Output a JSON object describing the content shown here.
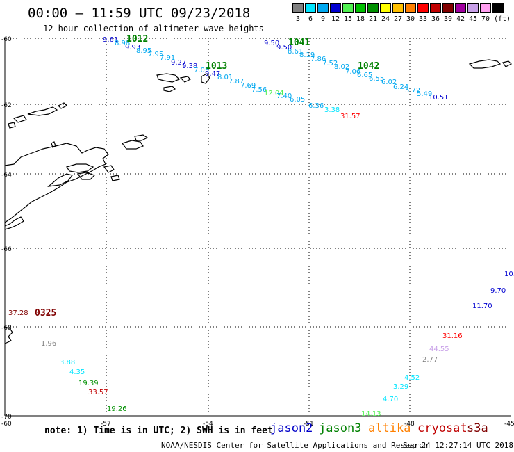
{
  "header": {
    "title": "00:00 – 11:59 UTC 09/23/2018",
    "subtitle": "12 hour collection of altimeter wave heights"
  },
  "legend": {
    "unit": "(ft)",
    "bins": [
      {
        "label": "3",
        "color": "#808080"
      },
      {
        "label": "6",
        "color": "#00e5ff"
      },
      {
        "label": "9",
        "color": "#00a8f0"
      },
      {
        "label": "12",
        "color": "#0000d0"
      },
      {
        "label": "15",
        "color": "#50f050"
      },
      {
        "label": "18",
        "color": "#00c000"
      },
      {
        "label": "21",
        "color": "#009000"
      },
      {
        "label": "24",
        "color": "#ffff00"
      },
      {
        "label": "27",
        "color": "#ffc000"
      },
      {
        "label": "30",
        "color": "#ff8000"
      },
      {
        "label": "33",
        "color": "#ff0000"
      },
      {
        "label": "36",
        "color": "#c00000"
      },
      {
        "label": "39",
        "color": "#800000"
      },
      {
        "label": "42",
        "color": "#a000a0"
      },
      {
        "label": "45",
        "color": "#c8a0e8"
      },
      {
        "label": "70",
        "color": "#ff9ff0"
      },
      {
        "label": "",
        "color": "#000000"
      }
    ]
  },
  "axes": {
    "lat_labels": [
      "-60",
      "-62",
      "-64",
      "-66",
      "-68",
      "-70"
    ],
    "lon_labels": [
      "-60",
      "-57",
      "-54",
      "-51",
      "-48",
      "-45"
    ]
  },
  "track_times": [
    {
      "text": "1012",
      "color": "#008000"
    },
    {
      "text": "1013",
      "color": "#008000"
    },
    {
      "text": "1041",
      "color": "#008000"
    },
    {
      "text": "1042",
      "color": "#008000"
    },
    {
      "text": "0325",
      "color": "#800000"
    }
  ],
  "observations": [
    {
      "text": "9.61",
      "color": "#0000d0"
    },
    {
      "text": "8.98",
      "color": "#00a8f0"
    },
    {
      "text": "9.93",
      "color": "#0000d0"
    },
    {
      "text": "8.95",
      "color": "#00a8f0"
    },
    {
      "text": "7.95",
      "color": "#00a8f0"
    },
    {
      "text": "7.91",
      "color": "#00a8f0"
    },
    {
      "text": "9.27",
      "color": "#0000d0"
    },
    {
      "text": "9.38",
      "color": "#0000d0"
    },
    {
      "text": "7.05",
      "color": "#00a8f0"
    },
    {
      "text": "9.47",
      "color": "#0000d0"
    },
    {
      "text": "8.01",
      "color": "#00a8f0"
    },
    {
      "text": "7.87",
      "color": "#00a8f0"
    },
    {
      "text": "7.69",
      "color": "#00a8f0"
    },
    {
      "text": "7.56",
      "color": "#00a8f0"
    },
    {
      "text": "12.04",
      "color": "#50f050"
    },
    {
      "text": "7.40",
      "color": "#00a8f0"
    },
    {
      "text": "6.05",
      "color": "#00a8f0"
    },
    {
      "text": "6.36",
      "color": "#00a8f0"
    },
    {
      "text": "3.38",
      "color": "#00e5ff"
    },
    {
      "text": "31.57",
      "color": "#ff0000"
    },
    {
      "text": "9.50",
      "color": "#0000d0"
    },
    {
      "text": "9.50",
      "color": "#0000d0"
    },
    {
      "text": "8.61",
      "color": "#00a8f0"
    },
    {
      "text": "8.19",
      "color": "#00a8f0"
    },
    {
      "text": "7.86",
      "color": "#00a8f0"
    },
    {
      "text": "7.52",
      "color": "#00a8f0"
    },
    {
      "text": "8.02",
      "color": "#00a8f0"
    },
    {
      "text": "7.06",
      "color": "#00a8f0"
    },
    {
      "text": "6.65",
      "color": "#00a8f0"
    },
    {
      "text": "6.55",
      "color": "#00a8f0"
    },
    {
      "text": "6.02",
      "color": "#00a8f0"
    },
    {
      "text": "6.24",
      "color": "#00a8f0"
    },
    {
      "text": "5.72",
      "color": "#00a8f0"
    },
    {
      "text": "5.49",
      "color": "#00a8f0"
    },
    {
      "text": "10.51",
      "color": "#0000d0"
    },
    {
      "text": "10.",
      "color": "#0000d0"
    },
    {
      "text": "9.70",
      "color": "#0000d0"
    },
    {
      "text": "11.70",
      "color": "#0000d0"
    },
    {
      "text": "31.16",
      "color": "#ff0000"
    },
    {
      "text": "44.55",
      "color": "#c8a0e8"
    },
    {
      "text": "2.77",
      "color": "#808080"
    },
    {
      "text": "4.52",
      "color": "#00e5ff"
    },
    {
      "text": "3.29",
      "color": "#00e5ff"
    },
    {
      "text": "4.70",
      "color": "#00e5ff"
    },
    {
      "text": "14.13",
      "color": "#50f050"
    },
    {
      "text": "37.28",
      "color": "#800000"
    },
    {
      "text": "1.96",
      "color": "#808080"
    },
    {
      "text": "3.88",
      "color": "#00e5ff"
    },
    {
      "text": "4.35",
      "color": "#00e5ff"
    },
    {
      "text": "19.39",
      "color": "#009000"
    },
    {
      "text": "33.57",
      "color": "#c00000"
    },
    {
      "text": "19.26",
      "color": "#009000"
    }
  ],
  "footer": {
    "note": "note: 1) Time is in UTC; 2) SWH is in feet",
    "satellites": [
      {
        "name": "jason2",
        "color": "#0000c8"
      },
      {
        "name": "jason3",
        "color": "#008000"
      },
      {
        "name": "altika",
        "color": "#ff8000"
      },
      {
        "name": "cryosat",
        "color": "#c00000"
      },
      {
        "name": "s3a",
        "color": "#800000"
      }
    ],
    "credit": "NOAA/NESDIS Center for Satellite Applications and Research",
    "timestamp": "Sep 24 12:27:14 UTC 2018"
  }
}
